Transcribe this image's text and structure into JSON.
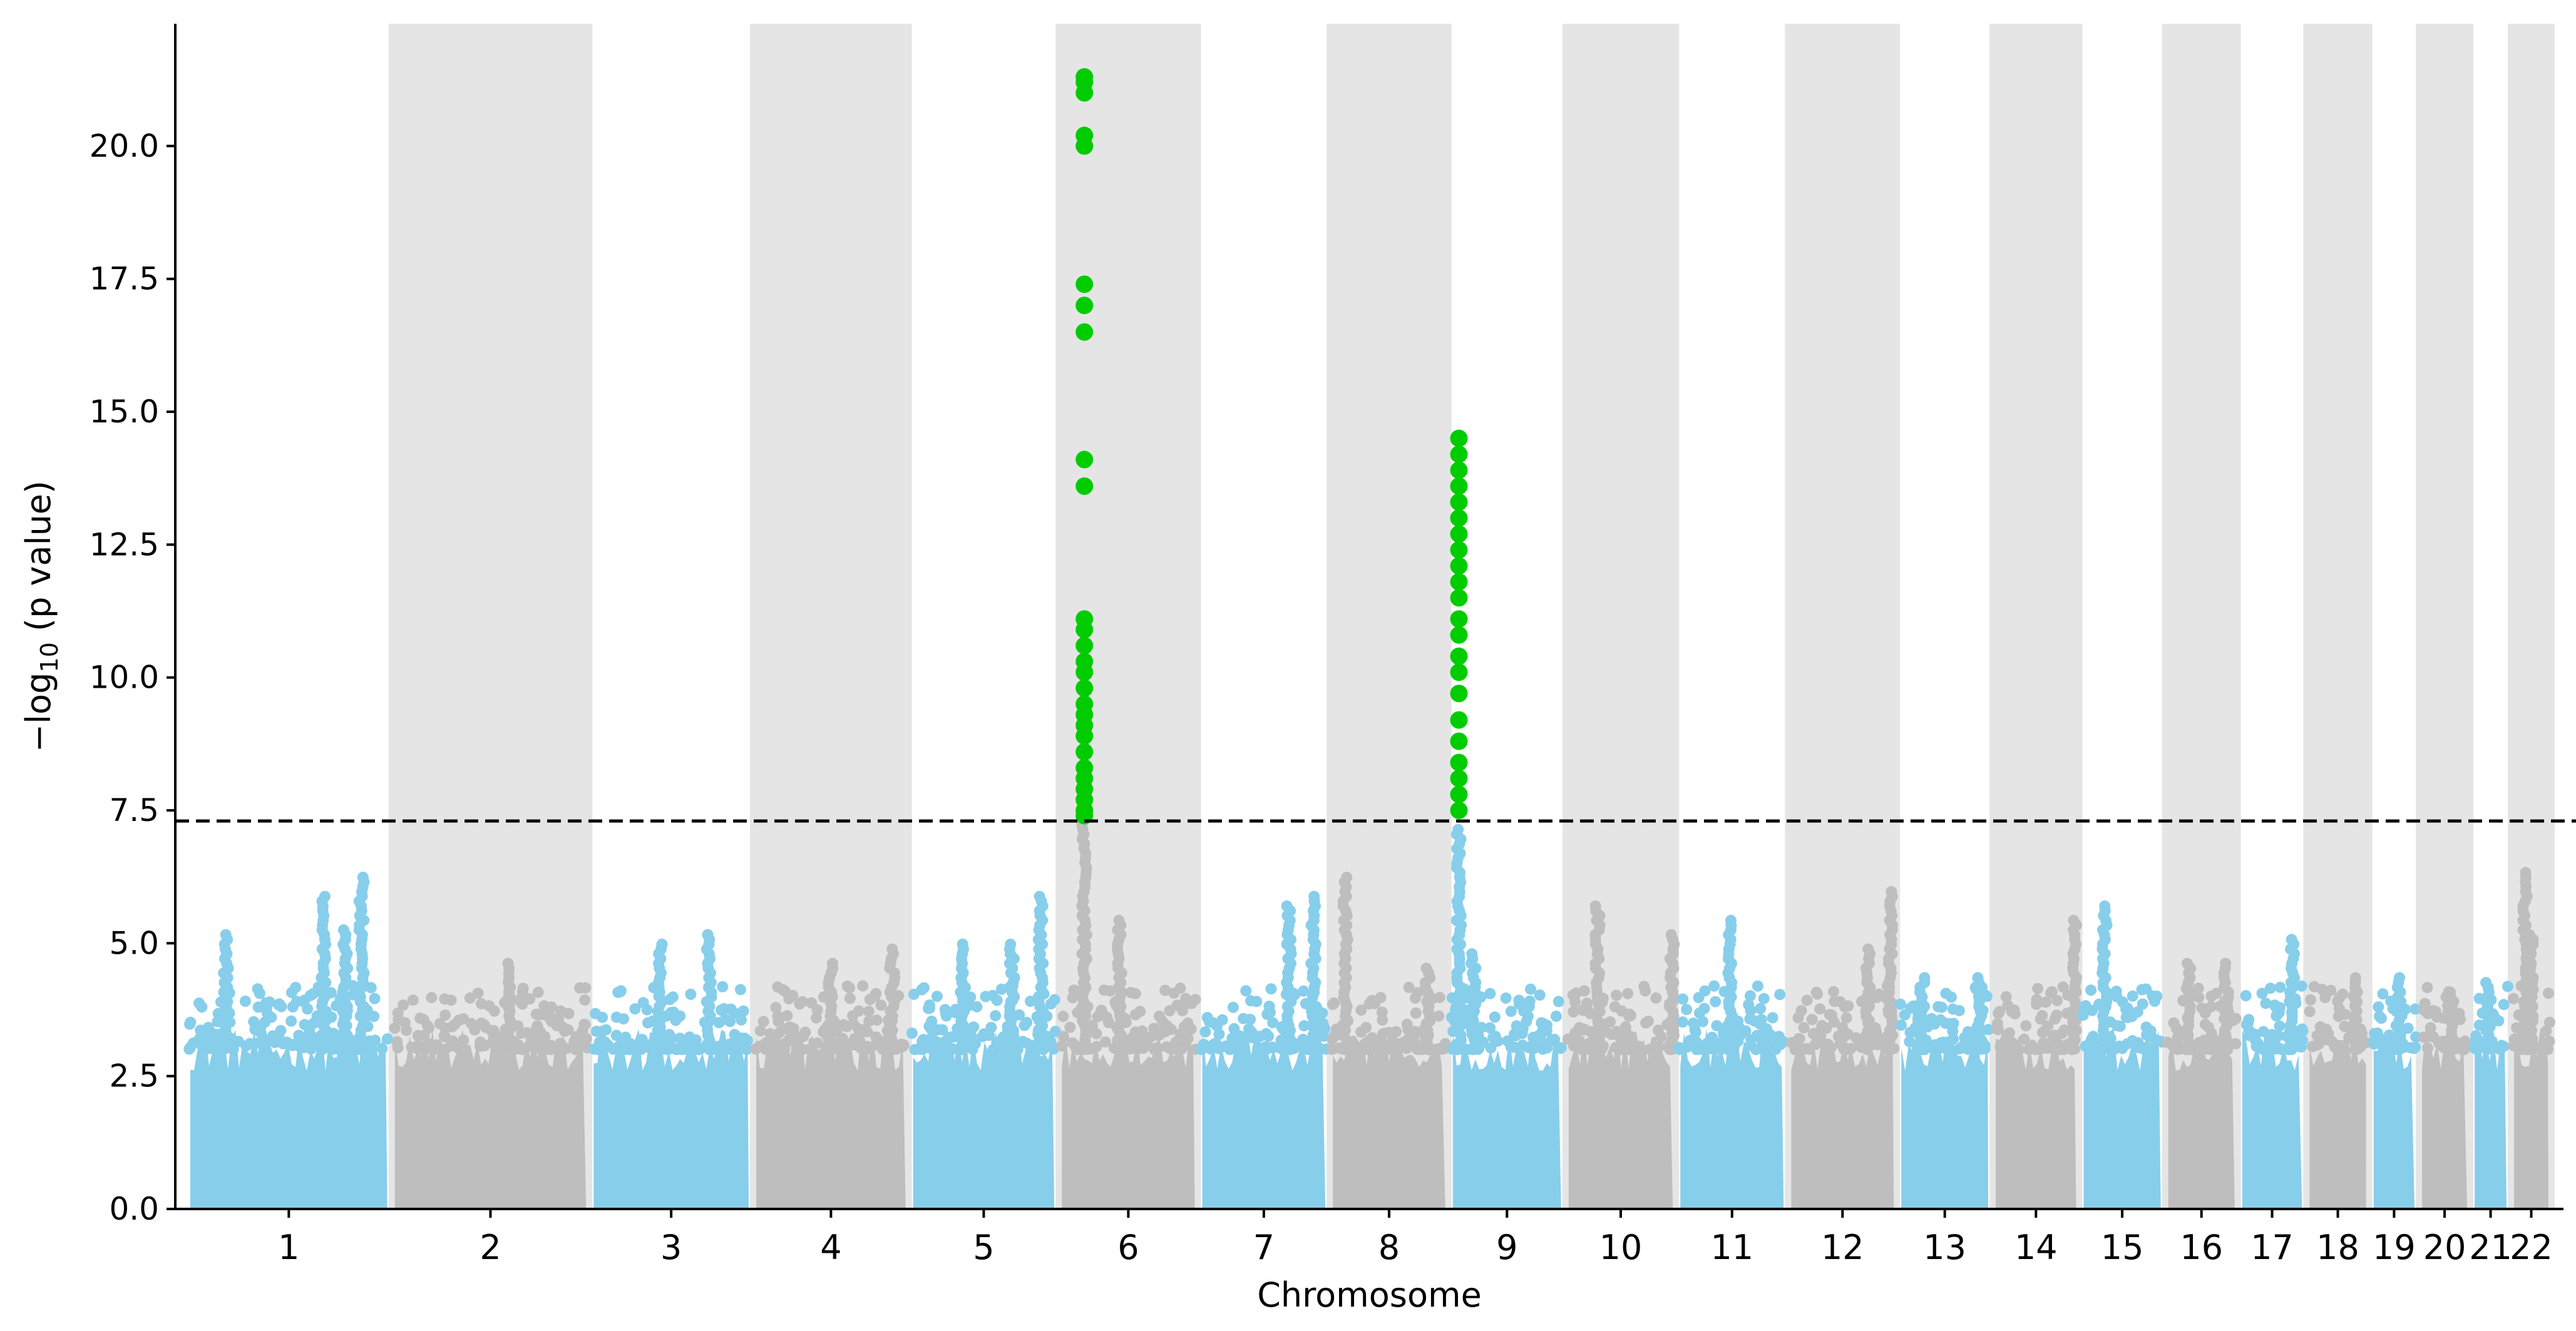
{
  "chart_data": {
    "type": "scatter",
    "subtype": "manhattan",
    "title": "",
    "xlabel": "Chromosome",
    "ylabel_main": "−log",
    "ylabel_sub": "10",
    "ylabel_tail": " (p value)",
    "ylim": [
      0,
      22.3
    ],
    "yticks": [
      "0.0",
      "2.5",
      "5.0",
      "7.5",
      "10.0",
      "12.5",
      "15.0",
      "17.5",
      "20.0"
    ],
    "significance_threshold": 7.3,
    "colors": {
      "odd": "#87ceeb",
      "even": "#bebebe",
      "significant": "#00cc00",
      "band": "#e5e5e5",
      "threshold": "#000000"
    },
    "chromosomes": [
      {
        "label": "1",
        "start": 0,
        "end": 249,
        "peaks": [
          {
            "pos": 48,
            "max": 5.2
          },
          {
            "pos": 167,
            "max": 5.9
          },
          {
            "pos": 193,
            "max": 5.3
          },
          {
            "pos": 213,
            "max": 6.3
          }
        ]
      },
      {
        "label": "2",
        "start": 249,
        "end": 491,
        "peaks": [
          {
            "pos": 145,
            "max": 4.7
          }
        ]
      },
      {
        "label": "3",
        "start": 491,
        "end": 689,
        "peaks": [
          {
            "pos": 85,
            "max": 5.0
          },
          {
            "pos": 145,
            "max": 5.2
          }
        ]
      },
      {
        "label": "4",
        "start": 689,
        "end": 880,
        "peaks": [
          {
            "pos": 95,
            "max": 4.7
          },
          {
            "pos": 170,
            "max": 4.9
          }
        ]
      },
      {
        "label": "5",
        "start": 880,
        "end": 1061,
        "peaks": [
          {
            "pos": 65,
            "max": 5.0
          },
          {
            "pos": 125,
            "max": 5.0
          },
          {
            "pos": 160,
            "max": 5.9
          }
        ]
      },
      {
        "label": "6",
        "start": 1061,
        "end": 1232,
        "peaks": [
          {
            "pos": 32,
            "max": 7.3
          },
          {
            "pos": 75,
            "max": 5.5
          }
        ],
        "hits": [
          7.4,
          7.5,
          7.7,
          7.9,
          8.1,
          8.3,
          8.6,
          8.9,
          9.1,
          9.3,
          9.5,
          9.8,
          10.1,
          10.3,
          10.6,
          10.9,
          11.1,
          13.6,
          14.1,
          16.5,
          17.0,
          17.4,
          20.0,
          20.2,
          21.0,
          21.2,
          21.3
        ],
        "hits_pos": 32
      },
      {
        "label": "7",
        "start": 1232,
        "end": 1391,
        "peaks": [
          {
            "pos": 110,
            "max": 5.7
          },
          {
            "pos": 140,
            "max": 5.9
          }
        ]
      },
      {
        "label": "8",
        "start": 1391,
        "end": 1537,
        "peaks": [
          {
            "pos": 20,
            "max": 6.3
          },
          {
            "pos": 120,
            "max": 4.6
          }
        ]
      },
      {
        "label": "9",
        "start": 1537,
        "end": 1678,
        "peaks": [
          {
            "pos": 12,
            "max": 7.2
          },
          {
            "pos": 30,
            "max": 4.8
          }
        ],
        "hits": [
          7.5,
          7.8,
          8.1,
          8.4,
          8.8,
          9.2,
          9.7,
          10.1,
          10.4,
          10.8,
          11.1,
          11.5,
          11.8,
          12.1,
          12.4,
          12.7,
          13.0,
          13.3,
          13.6,
          13.9,
          14.2,
          14.5
        ],
        "hits_pos": 12
      },
      {
        "label": "10",
        "start": 1678,
        "end": 1814,
        "peaks": [
          {
            "pos": 40,
            "max": 5.7
          },
          {
            "pos": 130,
            "max": 5.2
          }
        ]
      },
      {
        "label": "11",
        "start": 1814,
        "end": 1949,
        "peaks": [
          {
            "pos": 65,
            "max": 5.5
          }
        ]
      },
      {
        "label": "12",
        "start": 1949,
        "end": 2083,
        "peaks": [
          {
            "pos": 98,
            "max": 4.9
          },
          {
            "pos": 125,
            "max": 6.0
          }
        ]
      },
      {
        "label": "13",
        "start": 2083,
        "end": 2198,
        "peaks": [
          {
            "pos": 30,
            "max": 4.4
          },
          {
            "pos": 100,
            "max": 4.4
          }
        ]
      },
      {
        "label": "14",
        "start": 2198,
        "end": 2305,
        "peaks": [
          {
            "pos": 100,
            "max": 5.5
          }
        ]
      },
      {
        "label": "15",
        "start": 2305,
        "end": 2408,
        "peaks": [
          {
            "pos": 30,
            "max": 5.7
          }
        ]
      },
      {
        "label": "16",
        "start": 2408,
        "end": 2498,
        "peaks": [
          {
            "pos": 30,
            "max": 4.7
          },
          {
            "pos": 75,
            "max": 4.7
          }
        ]
      },
      {
        "label": "17",
        "start": 2498,
        "end": 2580,
        "peaks": [
          {
            "pos": 65,
            "max": 5.1
          }
        ]
      },
      {
        "label": "18",
        "start": 2580,
        "end": 2658,
        "peaks": [
          {
            "pos": 60,
            "max": 4.4
          }
        ]
      },
      {
        "label": "19",
        "start": 2658,
        "end": 2717,
        "peaks": [
          {
            "pos": 35,
            "max": 4.4
          }
        ]
      },
      {
        "label": "20",
        "start": 2717,
        "end": 2781,
        "peaks": [
          {
            "pos": 40,
            "max": 4.1
          }
        ]
      },
      {
        "label": "21",
        "start": 2781,
        "end": 2829,
        "peaks": [
          {
            "pos": 20,
            "max": 4.3
          }
        ]
      },
      {
        "label": "22",
        "start": 2829,
        "end": 2880,
        "peaks": [
          {
            "pos": 18,
            "max": 6.4
          },
          {
            "pos": 25,
            "max": 5.2
          }
        ]
      }
    ]
  }
}
